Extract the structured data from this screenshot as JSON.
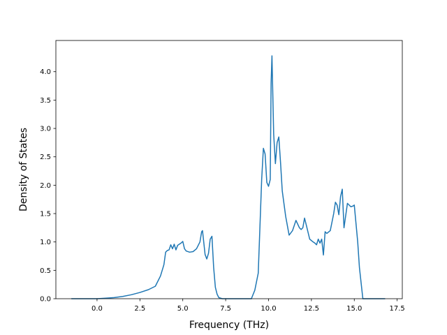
{
  "chart_data": {
    "type": "line",
    "title": "",
    "xlabel": "Frequency (THz)",
    "ylabel": "Density of States",
    "xlim": [
      -2.4,
      17.8
    ],
    "ylim": [
      0.0,
      4.55
    ],
    "xticks": [
      0.0,
      2.5,
      5.0,
      7.5,
      10.0,
      12.5,
      15.0,
      17.5
    ],
    "yticks": [
      0.0,
      0.5,
      1.0,
      1.5,
      2.0,
      2.5,
      3.0,
      3.5,
      4.0
    ],
    "xtick_labels": [
      "0.0",
      "2.5",
      "5.0",
      "7.5",
      "10.0",
      "12.5",
      "15.0",
      "17.5"
    ],
    "ytick_labels": [
      "0.0",
      "0.5",
      "1.0",
      "1.5",
      "2.0",
      "2.5",
      "3.0",
      "3.5",
      "4.0"
    ],
    "grid": false,
    "legend": "none",
    "color": "#1f77b4",
    "series": [
      {
        "x": [
          -1.5,
          -0.5,
          0.0,
          0.5,
          1.0,
          1.5,
          2.0,
          2.5,
          3.0,
          3.4,
          3.7,
          3.9,
          4.0,
          4.1,
          4.2,
          4.3,
          4.4,
          4.5,
          4.6,
          4.7,
          4.8,
          4.9,
          5.0,
          5.1,
          5.2,
          5.4,
          5.6,
          5.8,
          6.0,
          6.1,
          6.15,
          6.3,
          6.4,
          6.5,
          6.6,
          6.7,
          6.8,
          6.9,
          7.0,
          7.1,
          7.3,
          8.0,
          8.5,
          9.0,
          9.2,
          9.4,
          9.6,
          9.7,
          9.8,
          9.9,
          10.0,
          10.1,
          10.15,
          10.2,
          10.3,
          10.4,
          10.5,
          10.6,
          10.7,
          10.8,
          11.0,
          11.2,
          11.4,
          11.6,
          11.8,
          11.9,
          12.0,
          12.1,
          12.2,
          12.4,
          12.6,
          12.7,
          12.8,
          12.9,
          13.0,
          13.1,
          13.2,
          13.3,
          13.4,
          13.6,
          13.7,
          13.8,
          13.9,
          14.0,
          14.1,
          14.2,
          14.3,
          14.4,
          14.6,
          14.8,
          14.9,
          15.0,
          15.2,
          15.3,
          15.5,
          16.0,
          16.5,
          16.8
        ],
        "y": [
          0.0,
          0.0,
          0.0,
          0.01,
          0.02,
          0.04,
          0.07,
          0.11,
          0.16,
          0.22,
          0.4,
          0.6,
          0.82,
          0.85,
          0.86,
          0.95,
          0.88,
          0.96,
          0.86,
          0.94,
          0.96,
          0.98,
          1.01,
          0.88,
          0.84,
          0.82,
          0.83,
          0.88,
          1.0,
          1.18,
          1.2,
          0.78,
          0.7,
          0.8,
          1.05,
          1.1,
          0.55,
          0.2,
          0.08,
          0.02,
          0.0,
          0.0,
          0.0,
          0.0,
          0.15,
          0.45,
          2.1,
          2.65,
          2.55,
          2.05,
          1.98,
          2.1,
          3.8,
          4.28,
          2.9,
          2.38,
          2.75,
          2.85,
          2.4,
          1.9,
          1.45,
          1.12,
          1.2,
          1.38,
          1.25,
          1.22,
          1.25,
          1.42,
          1.3,
          1.05,
          1.0,
          0.98,
          0.95,
          1.05,
          0.98,
          1.05,
          0.77,
          1.18,
          1.15,
          1.2,
          1.35,
          1.5,
          1.7,
          1.65,
          1.48,
          1.8,
          1.93,
          1.25,
          1.68,
          1.62,
          1.63,
          1.65,
          1.0,
          0.55,
          0.0,
          0.0,
          0.0,
          0.0
        ]
      }
    ]
  }
}
